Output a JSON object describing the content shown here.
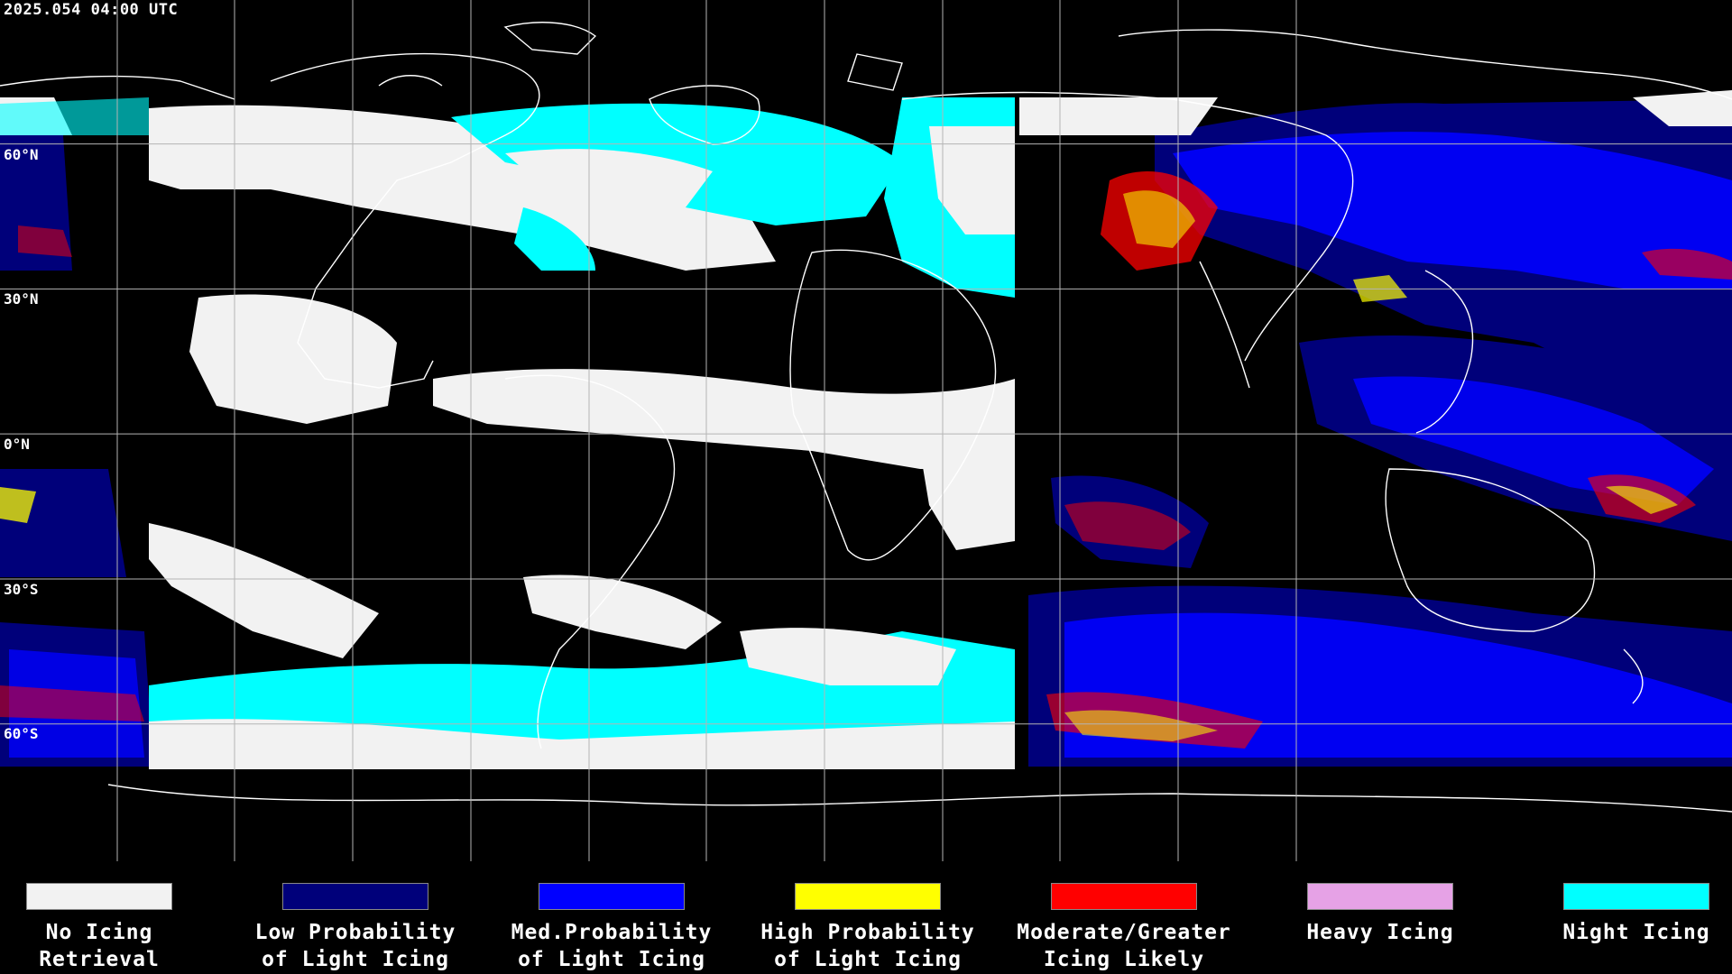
{
  "header": {
    "timestamp": "2025.054 04:00 UTC"
  },
  "map": {
    "projection": "equirectangular",
    "lat_labels": [
      "60°N",
      "30°N",
      "0°N",
      "30°S",
      "60°S"
    ]
  },
  "legend": [
    {
      "line1": "No Icing",
      "line2": "Retrieval",
      "color": "#f2f2f2"
    },
    {
      "line1": "Low Probability",
      "line2": "of Light Icing",
      "color": "#00007a"
    },
    {
      "line1": "Med.Probability",
      "line2": "of Light Icing",
      "color": "#0000ff"
    },
    {
      "line1": "High Probability",
      "line2": "of Light Icing",
      "color": "#ffff00"
    },
    {
      "line1": "Moderate/Greater",
      "line2": "Icing Likely",
      "color": "#ff0000"
    },
    {
      "line1": "Heavy Icing",
      "line2": "",
      "color": "#e6a2e6"
    },
    {
      "line1": "Night Icing",
      "line2": "",
      "color": "#00ffff"
    }
  ]
}
